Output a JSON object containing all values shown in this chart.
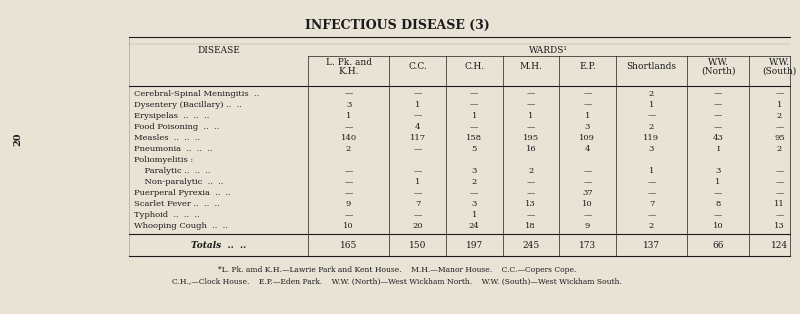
{
  "title": "INFECTIOUS DISEASE (3)",
  "wards_header": "WARDS¹",
  "col_headers": [
    "L. Pk. and\nK.H.",
    "C.C.",
    "C.H.",
    "M.H.",
    "E.P.",
    "Shortlands",
    "W.W.\n(North)",
    "W.W.\n(South)"
  ],
  "disease_col_header": "DISEASE",
  "rows": [
    {
      "disease": "Cerebral-Spinal Meningitis  ..",
      "values": [
        "—",
        "—",
        "—",
        "—",
        "—",
        "2",
        "—",
        "—"
      ]
    },
    {
      "disease": "Dysentery (Bacillary) ..  ..",
      "values": [
        "3",
        "1",
        "—",
        "—",
        "—",
        "1",
        "—",
        "1"
      ]
    },
    {
      "disease": "Erysipelas  ..  ..  ..",
      "values": [
        "1",
        "—",
        "1",
        "1",
        "1",
        "—",
        "—",
        "2"
      ]
    },
    {
      "disease": "Food Poisoning  ..  ..",
      "values": [
        "—",
        "4",
        "—",
        "—",
        "3",
        "2",
        "—",
        "—"
      ]
    },
    {
      "disease": "Measles  ..  ..  ..",
      "values": [
        "140",
        "117",
        "158",
        "195",
        "109",
        "119",
        "43",
        "95"
      ]
    },
    {
      "disease": "Pneumonia  ..  ..  ..",
      "values": [
        "2",
        "—",
        "5",
        "16",
        "4",
        "3",
        "I",
        "2"
      ]
    },
    {
      "disease": "Poliomyelitis :",
      "values": [
        "",
        "",
        "",
        "",
        "",
        "",
        "",
        ""
      ]
    },
    {
      "disease": "    Paralytic ..  ..  ..",
      "values": [
        "—",
        "—",
        "3",
        "2",
        "—",
        "1",
        "3",
        "—"
      ]
    },
    {
      "disease": "    Non-paralytic  ..  ..",
      "values": [
        "—",
        "1",
        "2",
        "—",
        "—",
        "—",
        "1",
        "—"
      ]
    },
    {
      "disease": "Puerperal Pyrexia  ..  ..",
      "values": [
        "—",
        "—",
        "—",
        "—",
        "37",
        "—",
        "—",
        "—"
      ]
    },
    {
      "disease": "Scarlet Fever ..  ..  ..",
      "values": [
        "9",
        "7",
        "3",
        "13",
        "10",
        "7",
        "8",
        "11"
      ]
    },
    {
      "disease": "Typhoid  ..  ..  ..",
      "values": [
        "—",
        "—",
        "1",
        "—",
        "—",
        "—",
        "—",
        "—"
      ]
    },
    {
      "disease": "Whooping Cough  ..  ..",
      "values": [
        "10",
        "20",
        "24",
        "18",
        "9",
        "2",
        "10",
        "13"
      ]
    }
  ],
  "totals": [
    "165",
    "150",
    "197",
    "245",
    "173",
    "137",
    "66",
    "124"
  ],
  "totals_label": "Totals  ..  ..",
  "footnote_lines": [
    "*L. Pk. amd K.H.—Lawrie Park and Kent House.    M.H.—Manor House.    C.C.—Copers Cope.",
    "C.H.,—Clock House.    E.P.—Eden Park.    W.W. (North)—West Wickham North.    W.W. (South)—West Wickham South."
  ],
  "bg_color": "#e8e3d5",
  "text_color": "#1a1a1a",
  "side_label": "20"
}
